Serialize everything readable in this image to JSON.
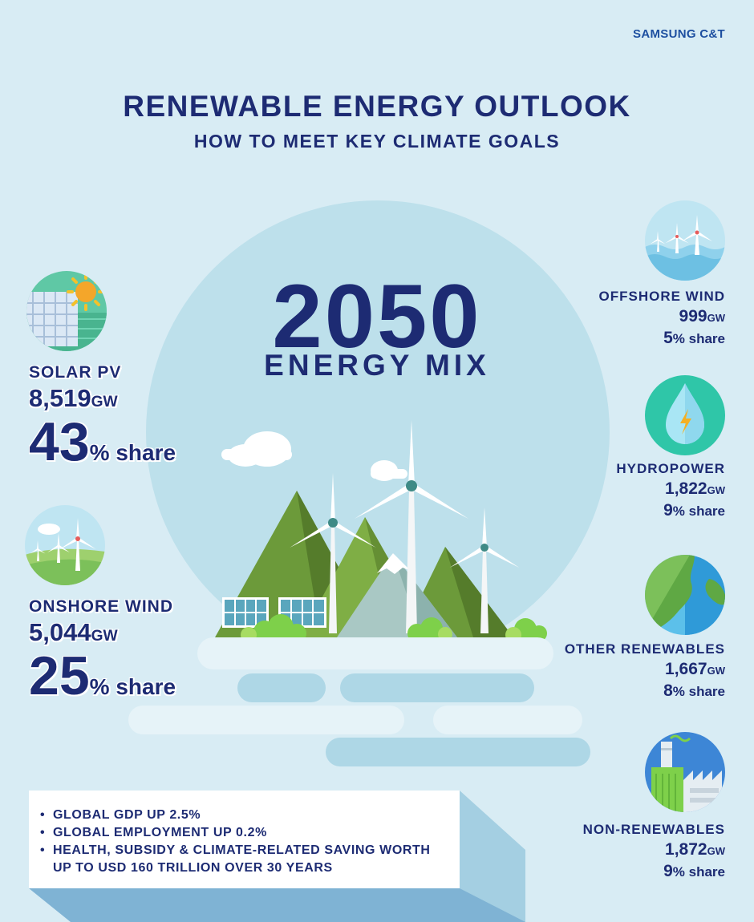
{
  "brand": "SAMSUNG C&T",
  "title": "RENEWABLE ENERGY OUTLOOK",
  "subtitle": "HOW TO MEET KEY CLIMATE GOALS",
  "center": {
    "year": "2050",
    "label": "ENERGY MIX"
  },
  "left": {
    "solar": {
      "name": "SOLAR PV",
      "gw": "8,519",
      "unit": "GW",
      "pct": "43",
      "pct_label": "% share",
      "icon": "solar-panel-icon"
    },
    "onshore": {
      "name": "ONSHORE WIND",
      "gw": "5,044",
      "unit": "GW",
      "pct": "25",
      "pct_label": "% share",
      "icon": "onshore-wind-icon"
    }
  },
  "right": [
    {
      "name": "OFFSHORE WIND",
      "gw": "999",
      "unit": "GW",
      "pct": "5",
      "pct_label": "% share",
      "icon": "offshore-wind-icon"
    },
    {
      "name": "HYDROPOWER",
      "gw": "1,822",
      "unit": "GW",
      "pct": "9",
      "pct_label": "% share",
      "icon": "water-drop-icon"
    },
    {
      "name": "OTHER RENEWABLES",
      "gw": "1,667",
      "unit": "GW",
      "pct": "8",
      "pct_label": "% share",
      "icon": "globe-icon"
    },
    {
      "name": "NON-RENEWABLES",
      "gw": "1,872",
      "unit": "GW",
      "pct": "9",
      "pct_label": "% share",
      "icon": "factory-icon"
    }
  ],
  "notes": [
    "GLOBAL GDP UP 2.5%",
    "GLOBAL EMPLOYMENT UP 0.2%",
    "HEALTH, SUBSIDY & CLIMATE-RELATED SAVING WORTH UP TO USD 160 TRILLION OVER 30 YEARS"
  ],
  "colors": {
    "navy": "#1d2b73",
    "background": "#d8ecf4",
    "circle": "#bde0eb",
    "mountain": "#6c9a3a"
  }
}
